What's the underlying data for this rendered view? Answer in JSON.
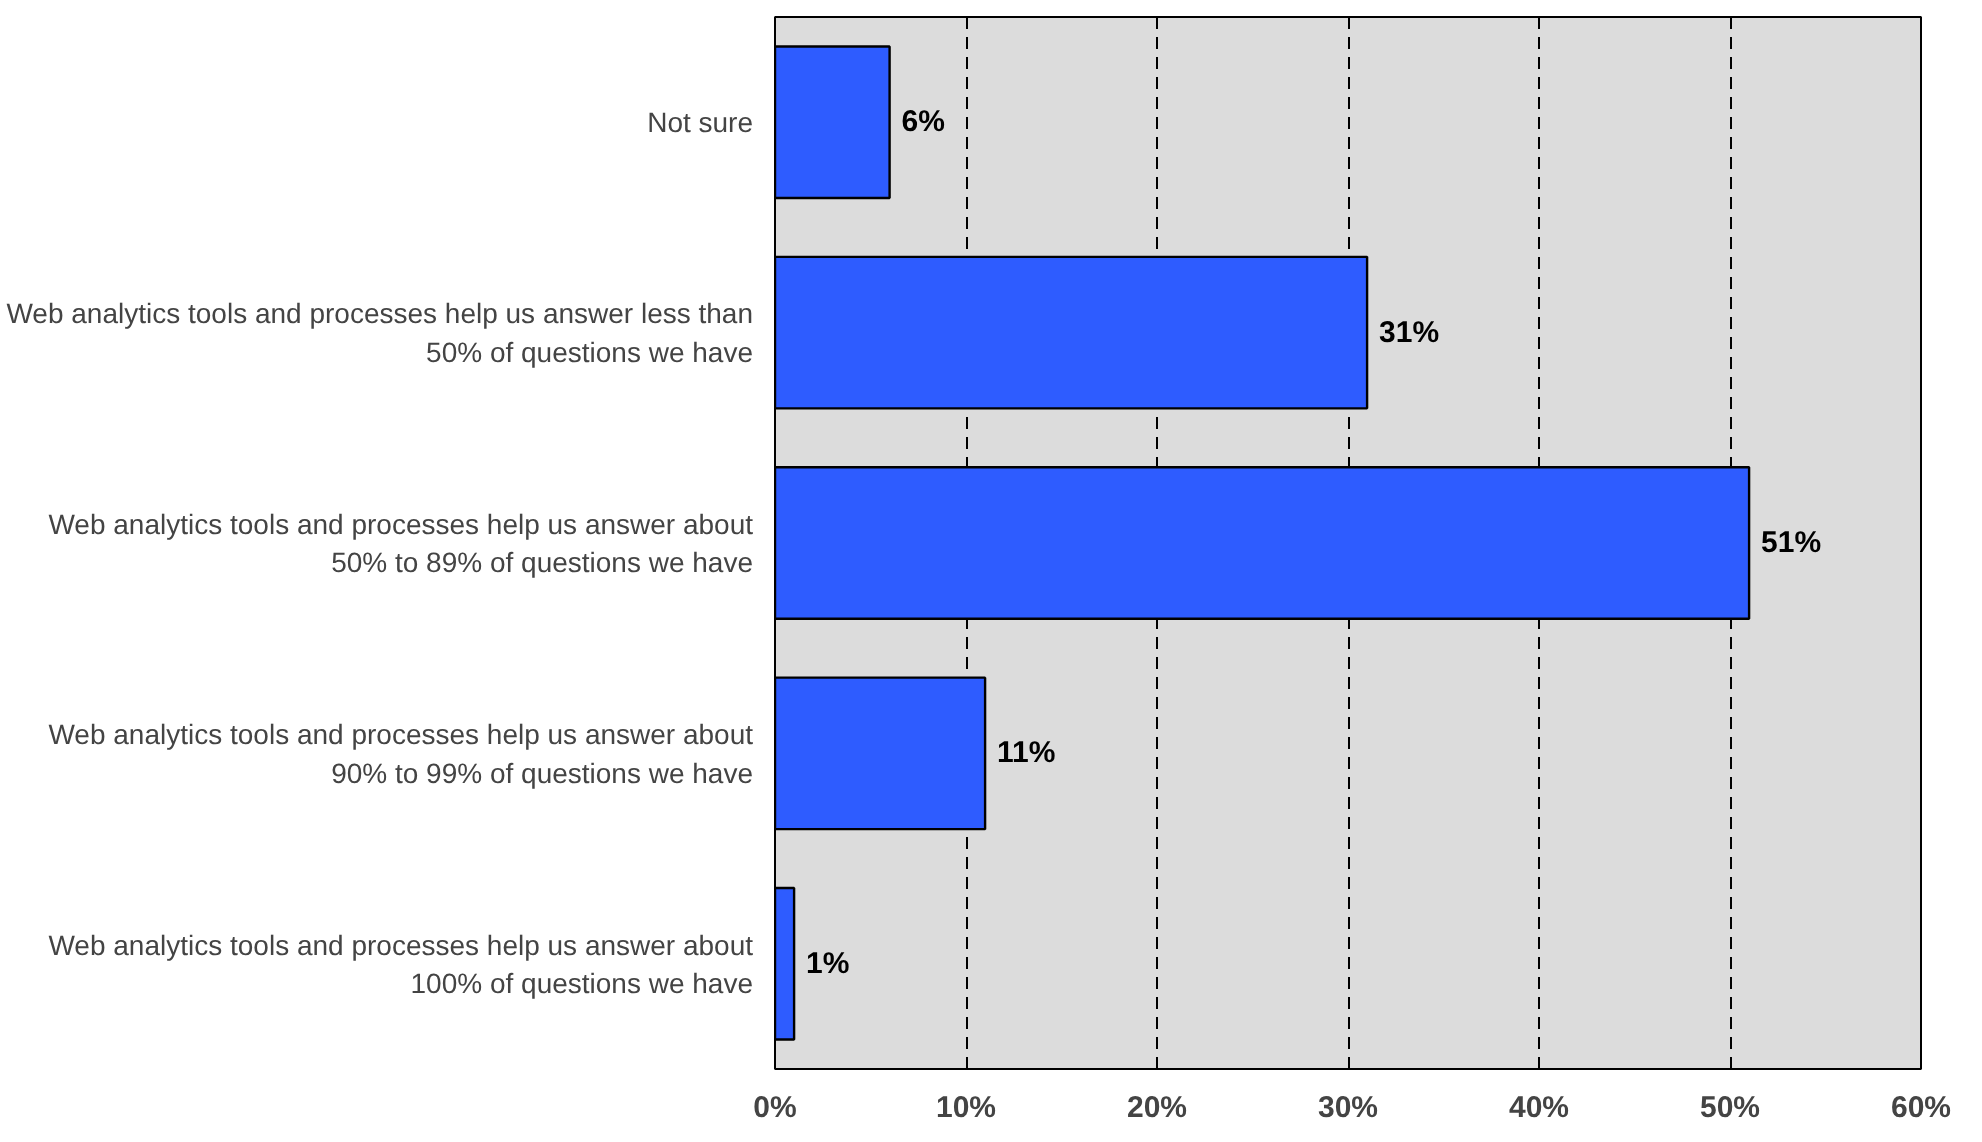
{
  "chart_data": {
    "type": "bar",
    "orientation": "horizontal",
    "categories": [
      "Not sure",
      "Web analytics tools and processes help us answer less than\n50% of questions we have",
      "Web analytics tools and processes help us answer about\n50% to 89% of questions we have",
      "Web analytics tools and processes help us answer about\n90% to 99% of questions we have",
      "Web analytics tools and processes help us answer about\n100% of questions we have"
    ],
    "values": [
      6,
      31,
      51,
      11,
      1
    ],
    "color": "#2e5cff",
    "value_labels": [
      "6%",
      "31%",
      "51%",
      "11%",
      "1%"
    ],
    "xlim": [
      0,
      60
    ],
    "xticks": [
      {
        "value": 0,
        "label": "0%"
      },
      {
        "value": 10,
        "label": "10%"
      },
      {
        "value": 20,
        "label": "20%"
      },
      {
        "value": 30,
        "label": "30%"
      },
      {
        "value": 40,
        "label": "40%"
      },
      {
        "value": 50,
        "label": "50%"
      },
      {
        "value": 60,
        "label": "60%"
      }
    ],
    "grid": "x",
    "line_style": "dashed"
  }
}
